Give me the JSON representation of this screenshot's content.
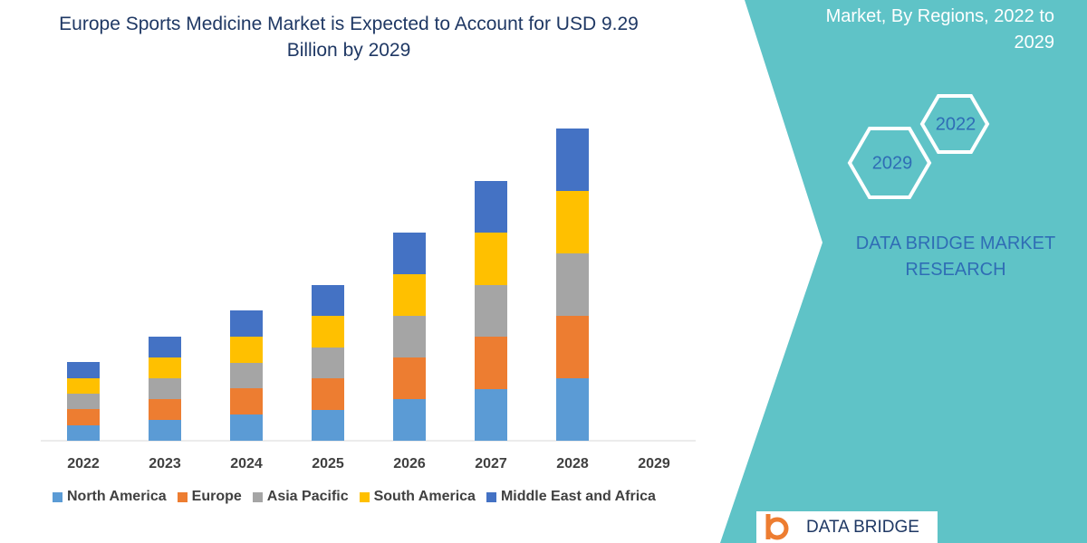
{
  "chart_data": {
    "type": "stacked-bar",
    "title": "Europe Sports Medicine Market is Expected to Account for USD 9.29 Billion by 2029",
    "categories": [
      "2022",
      "2023",
      "2024",
      "2025",
      "2026",
      "2027",
      "2028",
      "2029"
    ],
    "series": [
      {
        "name": "North America",
        "color": "#5b9bd5",
        "values": [
          17,
          23,
          29,
          34,
          46,
          57,
          69,
          null
        ]
      },
      {
        "name": "Europe",
        "color": "#ed7d31",
        "values": [
          18,
          23,
          29,
          35,
          46,
          58,
          69,
          null
        ]
      },
      {
        "name": "Asia Pacific",
        "color": "#a5a5a5",
        "values": [
          17,
          23,
          28,
          34,
          46,
          57,
          69,
          null
        ]
      },
      {
        "name": "South America",
        "color": "#ffc000",
        "values": [
          17,
          23,
          29,
          35,
          46,
          58,
          69,
          null
        ]
      },
      {
        "name": "Middle East and Africa",
        "color": "#4472c4",
        "values": [
          18,
          23,
          29,
          34,
          46,
          57,
          69,
          null
        ]
      }
    ],
    "ylim": [
      0,
      350
    ]
  },
  "side_panel": {
    "heading": "Market, By Regions, 2022 to 2029",
    "hexagons": [
      "2022",
      "2029"
    ],
    "brand": "DATA BRIDGE MARKET RESEARCH",
    "logo": "DATA BRIDGE"
  }
}
